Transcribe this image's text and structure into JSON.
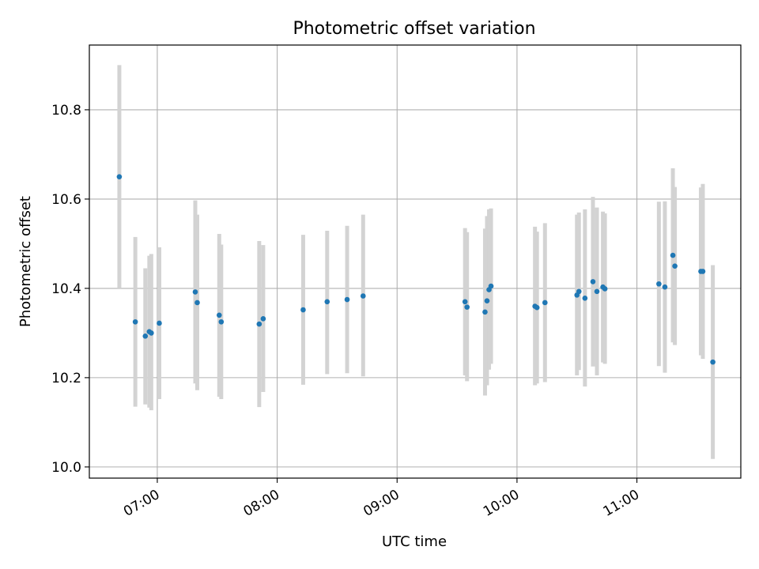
{
  "chart_data": {
    "type": "scatter",
    "title": "Photometric offset variation",
    "xlabel": "UTC time",
    "ylabel": "Photometric offset",
    "x_format": "HH:MM",
    "xlim": [
      "06:26",
      "11:52"
    ],
    "ylim": [
      9.975,
      10.945
    ],
    "x_ticks": [
      "07:00",
      "08:00",
      "09:00",
      "10:00",
      "11:00"
    ],
    "y_ticks": [
      "10.0",
      "10.2",
      "10.4",
      "10.6",
      "10.8"
    ],
    "grid": true,
    "point_color": "#1f77b4",
    "errorbar_color": "#d3d3d3",
    "series": [
      {
        "points": [
          {
            "x": "06:41",
            "y": 10.65,
            "ylow": 10.4,
            "yhigh": 10.9
          },
          {
            "x": "06:49",
            "y": 10.325,
            "ylow": 10.135,
            "yhigh": 10.515
          },
          {
            "x": "06:54",
            "y": 10.293,
            "ylow": 10.14,
            "yhigh": 10.445
          },
          {
            "x": "06:56",
            "y": 10.303,
            "ylow": 10.133,
            "yhigh": 10.473
          },
          {
            "x": "06:57",
            "y": 10.3,
            "ylow": 10.127,
            "yhigh": 10.477
          },
          {
            "x": "07:01",
            "y": 10.322,
            "ylow": 10.152,
            "yhigh": 10.492
          },
          {
            "x": "07:19",
            "y": 10.392,
            "ylow": 10.187,
            "yhigh": 10.597
          },
          {
            "x": "07:20",
            "y": 10.368,
            "ylow": 10.172,
            "yhigh": 10.565
          },
          {
            "x": "07:31",
            "y": 10.34,
            "ylow": 10.157,
            "yhigh": 10.522
          },
          {
            "x": "07:32",
            "y": 10.325,
            "ylow": 10.152,
            "yhigh": 10.498
          },
          {
            "x": "07:51",
            "y": 10.32,
            "ylow": 10.134,
            "yhigh": 10.506
          },
          {
            "x": "07:53",
            "y": 10.332,
            "ylow": 10.168,
            "yhigh": 10.497
          },
          {
            "x": "08:13",
            "y": 10.352,
            "ylow": 10.184,
            "yhigh": 10.52
          },
          {
            "x": "08:25",
            "y": 10.37,
            "ylow": 10.208,
            "yhigh": 10.529
          },
          {
            "x": "08:35",
            "y": 10.375,
            "ylow": 10.21,
            "yhigh": 10.54
          },
          {
            "x": "08:43",
            "y": 10.383,
            "ylow": 10.203,
            "yhigh": 10.565
          },
          {
            "x": "09:34",
            "y": 10.37,
            "ylow": 10.205,
            "yhigh": 10.535
          },
          {
            "x": "09:35",
            "y": 10.358,
            "ylow": 10.192,
            "yhigh": 10.526
          },
          {
            "x": "09:44",
            "y": 10.347,
            "ylow": 10.16,
            "yhigh": 10.534
          },
          {
            "x": "09:45",
            "y": 10.372,
            "ylow": 10.183,
            "yhigh": 10.562
          },
          {
            "x": "09:46",
            "y": 10.397,
            "ylow": 10.218,
            "yhigh": 10.577
          },
          {
            "x": "09:47",
            "y": 10.405,
            "ylow": 10.231,
            "yhigh": 10.579
          },
          {
            "x": "10:09",
            "y": 10.36,
            "ylow": 10.183,
            "yhigh": 10.538
          },
          {
            "x": "10:10",
            "y": 10.357,
            "ylow": 10.187,
            "yhigh": 10.527
          },
          {
            "x": "10:14",
            "y": 10.368,
            "ylow": 10.19,
            "yhigh": 10.546
          },
          {
            "x": "10:30",
            "y": 10.385,
            "ylow": 10.205,
            "yhigh": 10.565
          },
          {
            "x": "10:31",
            "y": 10.393,
            "ylow": 10.217,
            "yhigh": 10.57
          },
          {
            "x": "10:34",
            "y": 10.378,
            "ylow": 10.18,
            "yhigh": 10.577
          },
          {
            "x": "10:38",
            "y": 10.415,
            "ylow": 10.225,
            "yhigh": 10.605
          },
          {
            "x": "10:40",
            "y": 10.393,
            "ylow": 10.205,
            "yhigh": 10.581
          },
          {
            "x": "10:43",
            "y": 10.403,
            "ylow": 10.234,
            "yhigh": 10.572
          },
          {
            "x": "10:44",
            "y": 10.399,
            "ylow": 10.231,
            "yhigh": 10.568
          },
          {
            "x": "11:11",
            "y": 10.41,
            "ylow": 10.226,
            "yhigh": 10.594
          },
          {
            "x": "11:14",
            "y": 10.403,
            "ylow": 10.211,
            "yhigh": 10.595
          },
          {
            "x": "11:18",
            "y": 10.474,
            "ylow": 10.279,
            "yhigh": 10.669
          },
          {
            "x": "11:19",
            "y": 10.45,
            "ylow": 10.273,
            "yhigh": 10.627
          },
          {
            "x": "11:32",
            "y": 10.438,
            "ylow": 10.25,
            "yhigh": 10.626
          },
          {
            "x": "11:33",
            "y": 10.438,
            "ylow": 10.242,
            "yhigh": 10.634
          },
          {
            "x": "11:38",
            "y": 10.235,
            "ylow": 10.018,
            "yhigh": 10.452
          }
        ]
      }
    ]
  }
}
